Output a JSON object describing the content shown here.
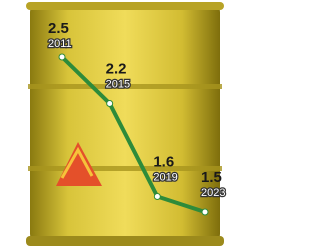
{
  "chart_data": {
    "type": "line",
    "categories": [
      "2011",
      "2015",
      "2019",
      "2023"
    ],
    "values": [
      2.5,
      2.2,
      1.6,
      1.5
    ],
    "color": "#2e8b3a"
  }
}
